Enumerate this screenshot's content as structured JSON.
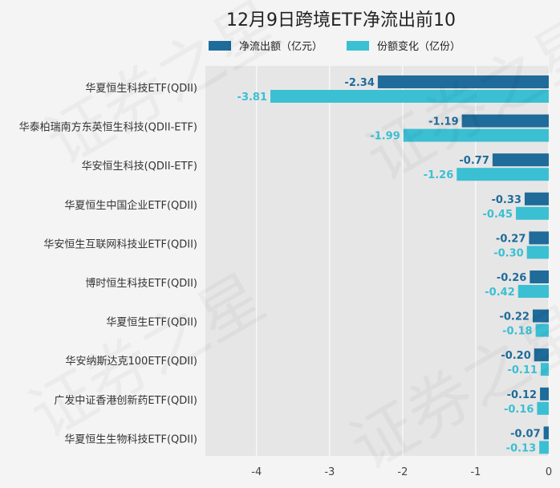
{
  "chart_data": {
    "type": "bar",
    "orientation": "horizontal",
    "title": "12月9日跨境ETF净流出前10",
    "categories": [
      "华夏恒生科技ETF(QDII)",
      "华泰柏瑞南方东英恒生科技(QDII-ETF)",
      "华安恒生科技(QDII-ETF)",
      "华夏恒生中国企业ETF(QDII)",
      "华安恒生互联网科技业ETF(QDII)",
      "博时恒生科技ETF(QDII)",
      "华夏恒生ETF(QDII)",
      "华安纳斯达克100ETF(QDII)",
      "广发中证香港创新药ETF(QDII)",
      "华夏恒生生物科技ETF(QDII)"
    ],
    "series": [
      {
        "name": "净流出额（亿元）",
        "color": "#1f6b9a",
        "values": [
          -2.34,
          -1.19,
          -0.77,
          -0.33,
          -0.27,
          -0.26,
          -0.22,
          -0.2,
          -0.12,
          -0.07
        ],
        "labels": [
          "-2.34",
          "-1.19",
          "-0.77",
          "-0.33",
          "-0.27",
          "-0.26",
          "-0.22",
          "-0.20",
          "-0.12",
          "-0.07"
        ]
      },
      {
        "name": "份额变化（亿份）",
        "color": "#3bbfd2",
        "values": [
          -3.81,
          -1.99,
          -1.26,
          -0.45,
          -0.3,
          -0.42,
          -0.18,
          -0.11,
          -0.16,
          -0.13
        ],
        "labels": [
          "-3.81",
          "-1.99",
          "-1.26",
          "-0.45",
          "-0.30",
          "-0.42",
          "-0.18",
          "-0.11",
          "-0.16",
          "-0.13"
        ]
      }
    ],
    "xlim": [
      -4.7,
      0
    ],
    "xticks": [
      -4,
      -3,
      -2,
      -1,
      0
    ],
    "xtick_labels": [
      "-4",
      "-3",
      "-2",
      "-1",
      "0"
    ],
    "grid": true,
    "legend_position": "top"
  },
  "watermark_text": "证券之星"
}
